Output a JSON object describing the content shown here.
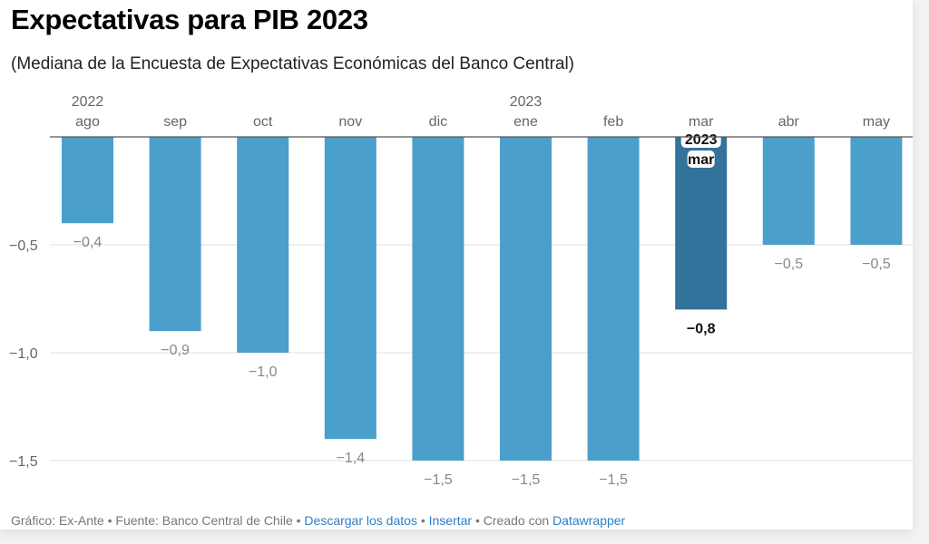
{
  "title": "Expectativas para PIB 2023",
  "subtitle": "(Mediana de la Encuesta de Expectativas Económicas del Banco Central)",
  "chart_data": {
    "type": "bar",
    "categories": [
      "ago",
      "sep",
      "oct",
      "nov",
      "dic",
      "ene",
      "feb",
      "mar",
      "abr",
      "may"
    ],
    "year_labels": {
      "0": "2022",
      "5": "2023"
    },
    "values": [
      -0.4,
      -0.9,
      -1.0,
      -1.4,
      -1.5,
      -1.5,
      -1.5,
      -0.8,
      -0.5,
      -0.5
    ],
    "value_labels": [
      "−0,4",
      "−0,9",
      "−1,0",
      "−1,4",
      "−1,5",
      "−1,5",
      "−1,5",
      "−0,8",
      "−0,5",
      "−0,5"
    ],
    "highlight_index": 7,
    "highlight_tooltip": [
      "2023",
      "mar"
    ],
    "yticks": [
      {
        "v": -0.5,
        "label": "−0,5"
      },
      {
        "v": -1.0,
        "label": "−1,0"
      },
      {
        "v": -1.5,
        "label": "−1,5"
      }
    ],
    "ylim": [
      -1.5,
      0
    ],
    "colors": {
      "bar": "#4b9fcb",
      "highlight": "#33729b"
    }
  },
  "footer": {
    "chart": "Gráfico: Ex-Ante",
    "sep": " • ",
    "source": "Fuente: Banco Central de Chile",
    "download": "Descargar los datos",
    "embed": "Insertar",
    "created": "Creado con ",
    "datawrapper": "Datawrapper"
  }
}
